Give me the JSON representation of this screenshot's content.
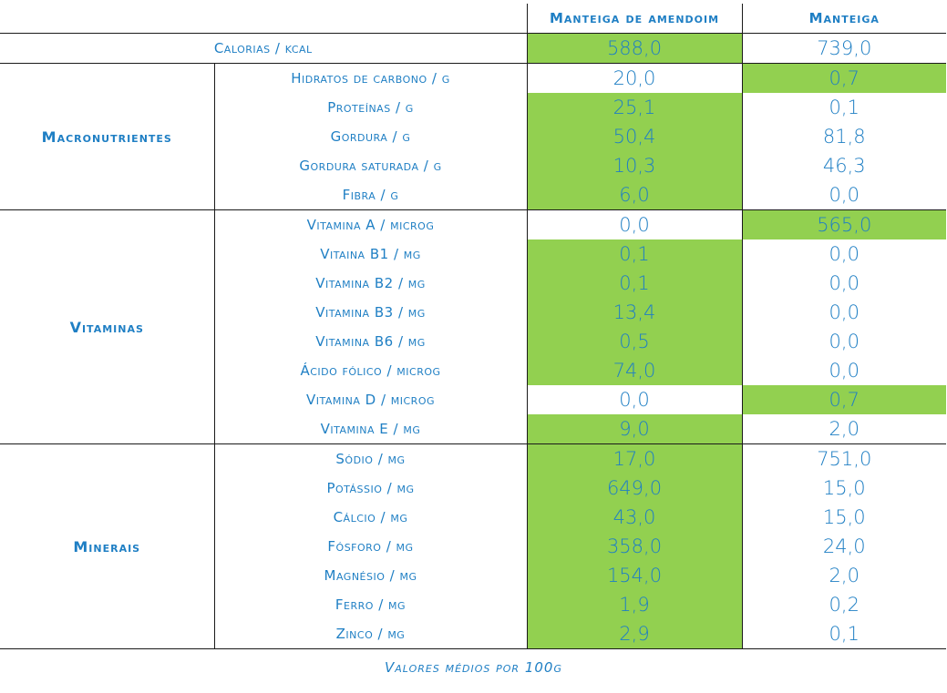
{
  "header": {
    "col1": "Manteiga de amendoim",
    "col2": "Manteiga"
  },
  "calorias": {
    "label": "Calorias / kcal",
    "v1": "588,0",
    "v2": "739,0",
    "hl": 1
  },
  "groups": [
    {
      "name": "Macronutrientes",
      "rows": [
        {
          "label": "Hidratos de carbono / g",
          "v1": "20,0",
          "v2": "0,7",
          "hl": 2
        },
        {
          "label": "Proteínas / g",
          "v1": "25,1",
          "v2": "0,1",
          "hl": 1
        },
        {
          "label": "Gordura / g",
          "v1": "50,4",
          "v2": "81,8",
          "hl": 1
        },
        {
          "label": "Gordura saturada / g",
          "v1": "10,3",
          "v2": "46,3",
          "hl": 1
        },
        {
          "label": "Fibra / g",
          "v1": "6,0",
          "v2": "0,0",
          "hl": 1
        }
      ]
    },
    {
      "name": "Vitaminas",
      "rows": [
        {
          "label": "Vitamina A / microg",
          "v1": "0,0",
          "v2": "565,0",
          "hl": 2
        },
        {
          "label": "Vitaina B1 / mg",
          "v1": "0,1",
          "v2": "0,0",
          "hl": 1
        },
        {
          "label": "Vitamina B2 / mg",
          "v1": "0,1",
          "v2": "0,0",
          "hl": 1
        },
        {
          "label": "Vitamina B3 / mg",
          "v1": "13,4",
          "v2": "0,0",
          "hl": 1
        },
        {
          "label": "Vitamina B6 / mg",
          "v1": "0,5",
          "v2": "0,0",
          "hl": 1
        },
        {
          "label": "Ácido fólico / microg",
          "v1": "74,0",
          "v2": "0,0",
          "hl": 1
        },
        {
          "label": "Vitamina D / microg",
          "v1": "0,0",
          "v2": "0,7",
          "hl": 2
        },
        {
          "label": "Vitamina E / mg",
          "v1": "9,0",
          "v2": "2,0",
          "hl": 1
        }
      ]
    },
    {
      "name": "Minerais",
      "rows": [
        {
          "label": "Sódio / mg",
          "v1": "17,0",
          "v2": "751,0",
          "hl": 1
        },
        {
          "label": "Potássio / mg",
          "v1": "649,0",
          "v2": "15,0",
          "hl": 1
        },
        {
          "label": "Cálcio / mg",
          "v1": "43,0",
          "v2": "15,0",
          "hl": 1
        },
        {
          "label": "Fósforo / mg",
          "v1": "358,0",
          "v2": "24,0",
          "hl": 1
        },
        {
          "label": "Magnésio / mg",
          "v1": "154,0",
          "v2": "2,0",
          "hl": 1
        },
        {
          "label": "Ferro / mg",
          "v1": "1,9",
          "v2": "0,2",
          "hl": 1
        },
        {
          "label": "Zinco / mg",
          "v1": "2,9",
          "v2": "0,1",
          "hl": 1
        }
      ]
    }
  ],
  "highlight_color": "#92d050",
  "text_color": "#1f7fc4",
  "footer": "Valores médios por 100g"
}
